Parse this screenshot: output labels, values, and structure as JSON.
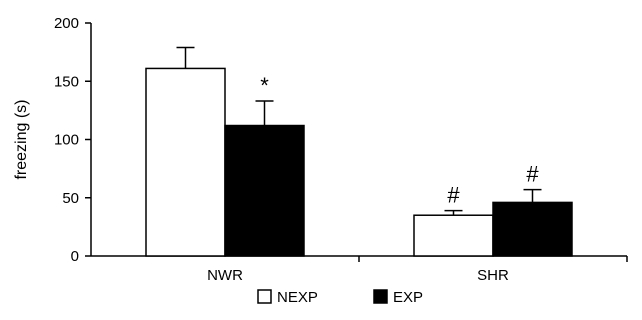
{
  "chart_data": {
    "type": "bar",
    "title": "",
    "xlabel": "",
    "ylabel": "freezing (s)",
    "ylim": [
      0,
      200
    ],
    "yticks": [
      0,
      50,
      100,
      150,
      200
    ],
    "grid": false,
    "legend_position": "bottom",
    "categories": [
      "NWR",
      "SHR"
    ],
    "series": [
      {
        "name": "NEXP",
        "values": [
          161,
          35
        ],
        "errors": [
          18,
          4
        ],
        "color": "#ffffff",
        "markers": [
          "",
          "#"
        ]
      },
      {
        "name": "EXP",
        "values": [
          112,
          46
        ],
        "errors": [
          21,
          11
        ],
        "color": "#000000",
        "markers": [
          "*",
          "#"
        ]
      }
    ]
  }
}
